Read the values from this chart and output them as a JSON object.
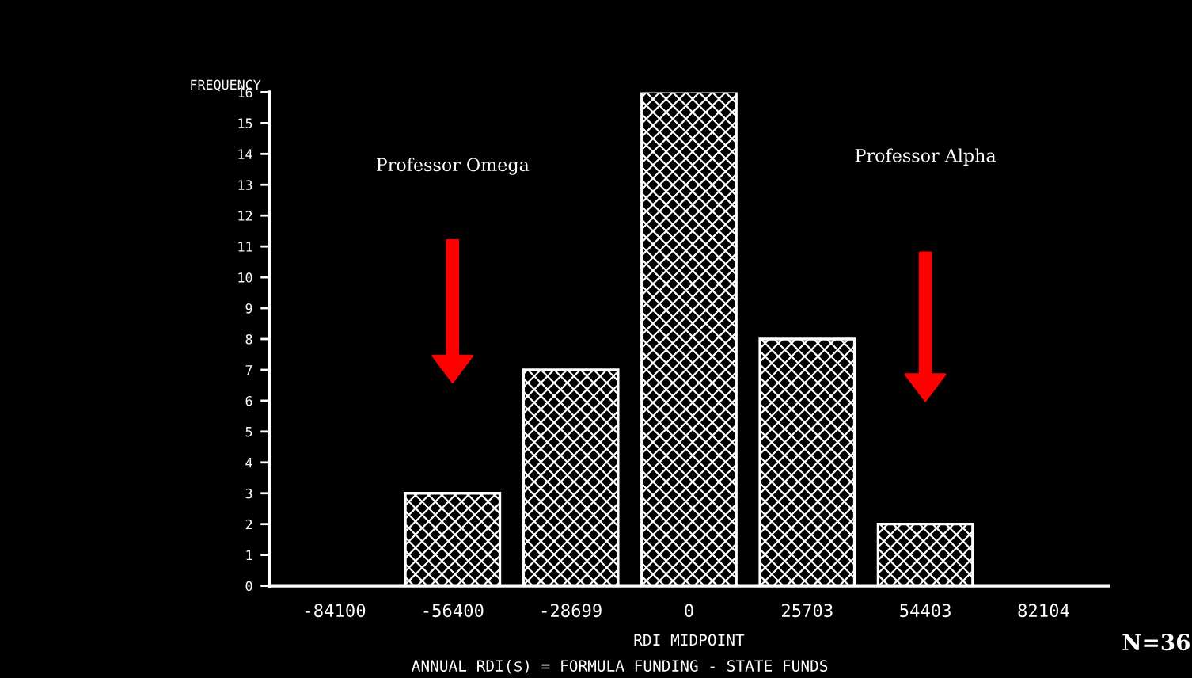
{
  "chart_data": {
    "type": "bar",
    "ylabel": "FREQUENCY",
    "xlabel": "RDI MIDPOINT",
    "categories": [
      "-84100",
      "-56400",
      "-28699",
      "0",
      "25703",
      "54403",
      "82104"
    ],
    "values": [
      0,
      3,
      7,
      16,
      8,
      2,
      0
    ],
    "color": "#ffffff",
    "ylim": [
      0,
      16
    ],
    "yticks": [
      0,
      1,
      2,
      3,
      4,
      5,
      6,
      7,
      8,
      9,
      10,
      11,
      12,
      13,
      14,
      15,
      16
    ],
    "grid": false,
    "legend": false,
    "annotations": [
      "Professor Omega",
      "Professor Alpha",
      "ANNUAL RDI($) = FORMULA FUNDING - STATE FUNDS",
      "N=36"
    ]
  }
}
